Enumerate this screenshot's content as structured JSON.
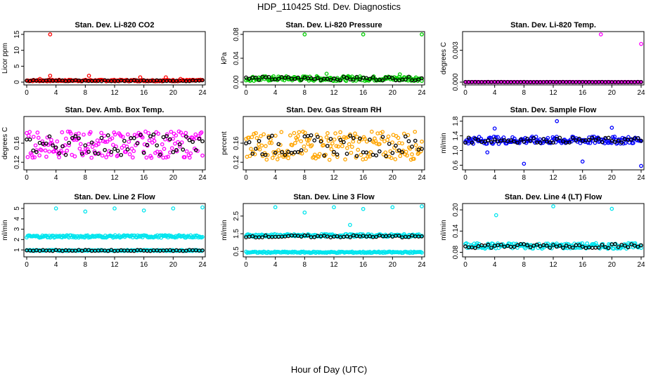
{
  "figure": {
    "title": "HDP_110425  Std. Dev. Diagnostics",
    "xlabel": "Hour of Day (UTC)"
  },
  "chart_data": [
    {
      "type": "scatter",
      "title": "Stan. Dev. Li-820 CO2",
      "ylabel": "Licor ppm",
      "xlim": [
        0,
        24
      ],
      "ylim": [
        0,
        15
      ],
      "xticks": [
        "0",
        "4",
        "8",
        "12",
        "16",
        "20",
        "24"
      ],
      "yticks": [
        "0",
        "5",
        "10",
        "15"
      ],
      "color": "#ff0000",
      "band": {
        "center": 0.5,
        "spread": 0.25
      },
      "black_band": {
        "center": 0.45,
        "spread": 0.15
      },
      "outliers": [
        {
          "x": 3.2,
          "y": 15
        },
        {
          "x": 3.2,
          "y": 2.0
        },
        {
          "x": 8.5,
          "y": 2.0
        },
        {
          "x": 15.5,
          "y": 1.5
        },
        {
          "x": 19,
          "y": 1.5
        },
        {
          "x": 1.8,
          "y": 1.0
        },
        {
          "x": 21,
          "y": 1.0
        }
      ]
    },
    {
      "type": "scatter",
      "title": "Stan. Dev. Li-820 Pressure",
      "ylabel": "kPa",
      "xlim": [
        0,
        24
      ],
      "ylim": [
        0,
        0.08
      ],
      "xticks": [
        "0",
        "4",
        "8",
        "12",
        "16",
        "20",
        "24"
      ],
      "yticks": [
        "0.00",
        "0.04",
        "0.08"
      ],
      "color": "#00cc00",
      "band": {
        "center": 0.006,
        "spread": 0.004
      },
      "black_band": {
        "center": 0.006,
        "spread": 0.003
      },
      "outliers": [
        {
          "x": 8,
          "y": 0.088
        },
        {
          "x": 16,
          "y": 0.088
        },
        {
          "x": 24,
          "y": 0.088
        },
        {
          "x": 11,
          "y": 0.014
        },
        {
          "x": 21,
          "y": 0.013
        }
      ]
    },
    {
      "type": "scatter",
      "title": "Stan. Dev. Li-820 Temp.",
      "ylabel": "degrees C",
      "xlim": [
        0,
        24
      ],
      "ylim": [
        0,
        0.0045
      ],
      "xticks": [
        "0",
        "4",
        "8",
        "12",
        "16",
        "20",
        "24"
      ],
      "yticks": [
        "0.000",
        "0.003"
      ],
      "color": "#ff00ff",
      "band": {
        "center": 0.0,
        "spread": 2e-05
      },
      "black_band": {
        "center": 0.0,
        "spread": 2e-05
      },
      "outliers": [
        {
          "x": 18.5,
          "y": 0.0045
        },
        {
          "x": 24,
          "y": 0.0036
        }
      ]
    },
    {
      "type": "scatter",
      "title": "Stan. Dev. Amb. Box Temp.",
      "ylabel": "degrees C",
      "xlim": [
        0,
        24
      ],
      "ylim": [
        0.11,
        0.21
      ],
      "xticks": [
        "0",
        "4",
        "8",
        "12",
        "16",
        "20",
        "24"
      ],
      "yticks": [
        "0.12",
        "0.16"
      ],
      "color": "#ff00ff",
      "band": {
        "center": 0.157,
        "spread": 0.028
      },
      "black_band": {
        "center": 0.157,
        "spread": 0.022
      },
      "outliers": []
    },
    {
      "type": "scatter",
      "title": "Stan. Dev. Gas Stream RH",
      "ylabel": "percent",
      "xlim": [
        0,
        24
      ],
      "ylim": [
        0.11,
        0.21
      ],
      "xticks": [
        "0",
        "4",
        "8",
        "12",
        "16",
        "20",
        "24"
      ],
      "yticks": [
        "0.12",
        "0.16"
      ],
      "color": "#ffa500",
      "band": {
        "center": 0.155,
        "spread": 0.03
      },
      "black_band": {
        "center": 0.155,
        "spread": 0.022
      },
      "outliers": []
    },
    {
      "type": "scatter",
      "title": "Stan. Dev. Sample Flow",
      "ylabel": "ml/min",
      "xlim": [
        0,
        24
      ],
      "ylim": [
        0.55,
        1.85
      ],
      "xticks": [
        "0",
        "4",
        "8",
        "12",
        "16",
        "20",
        "24"
      ],
      "yticks": [
        "0.6",
        "1.0",
        "1.4",
        "1.8"
      ],
      "color": "#0000ff",
      "band": {
        "center": 1.28,
        "spread": 0.1
      },
      "black_band": {
        "center": 1.28,
        "spread": 0.07
      },
      "outliers": [
        {
          "x": 8,
          "y": 0.64
        },
        {
          "x": 16,
          "y": 0.7
        },
        {
          "x": 24,
          "y": 0.58
        },
        {
          "x": 12.5,
          "y": 1.8
        },
        {
          "x": 4,
          "y": 1.6
        },
        {
          "x": 20,
          "y": 1.62
        },
        {
          "x": 3,
          "y": 0.95
        }
      ]
    },
    {
      "type": "scatter",
      "title": "Stan. Dev. Line 2 Flow",
      "ylabel": "ml/min",
      "xlim": [
        0,
        24
      ],
      "ylim": [
        0.6,
        5.2
      ],
      "xticks": [
        "0",
        "4",
        "8",
        "12",
        "16",
        "20",
        "24"
      ],
      "yticks": [
        "1",
        "2",
        "3",
        "4",
        "5"
      ],
      "color": "#00e5ee",
      "band": {
        "center": 2.3,
        "spread": 0.12
      },
      "black_band": {
        "center": 0.95,
        "spread": 0.05
      },
      "second_band": {
        "center": 0.95,
        "spread": 0.05
      },
      "outliers": [
        {
          "x": 4,
          "y": 5
        },
        {
          "x": 8,
          "y": 4.7
        },
        {
          "x": 12,
          "y": 5
        },
        {
          "x": 16,
          "y": 4.8
        },
        {
          "x": 20,
          "y": 5
        },
        {
          "x": 24,
          "y": 5.1
        }
      ]
    },
    {
      "type": "scatter",
      "title": "Stan. Dev. Line 3 Flow",
      "ylabel": "ml/min",
      "xlim": [
        0,
        24
      ],
      "ylim": [
        0.35,
        3.05
      ],
      "xticks": [
        "0",
        "4",
        "8",
        "12",
        "16",
        "20",
        "24"
      ],
      "yticks": [
        "0.5",
        "1.5",
        "2.5"
      ],
      "color": "#00e5ee",
      "band": {
        "center": 1.4,
        "spread": 0.08
      },
      "black_band": {
        "center": 1.35,
        "spread": 0.06
      },
      "second_band": {
        "center": 0.45,
        "spread": 0.04
      },
      "outliers": [
        {
          "x": 4,
          "y": 3.0
        },
        {
          "x": 8,
          "y": 2.7
        },
        {
          "x": 12,
          "y": 3.0
        },
        {
          "x": 16,
          "y": 2.9
        },
        {
          "x": 20,
          "y": 3.0
        },
        {
          "x": 24,
          "y": 3.05
        },
        {
          "x": 14.2,
          "y": 2.0
        }
      ]
    },
    {
      "type": "scatter",
      "title": "Stan. Dev. Line 4 (LT) Flow",
      "ylabel": "ml/min",
      "xlim": [
        0,
        24
      ],
      "ylim": [
        0.075,
        0.21
      ],
      "xticks": [
        "0",
        "4",
        "8",
        "12",
        "16",
        "20",
        "24"
      ],
      "yticks": [
        "0.08",
        "0.14",
        "0.20"
      ],
      "color": "#00e5ee",
      "band": {
        "center": 0.098,
        "spread": 0.008
      },
      "black_band": {
        "center": 0.098,
        "spread": 0.006
      },
      "outliers": [
        {
          "x": 4.2,
          "y": 0.185
        },
        {
          "x": 12,
          "y": 0.21
        },
        {
          "x": 20,
          "y": 0.203
        }
      ]
    }
  ]
}
